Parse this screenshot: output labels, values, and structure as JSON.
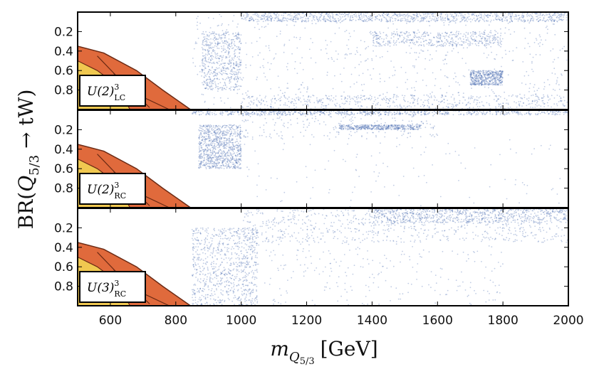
{
  "chart_data": {
    "type": "scatter",
    "xlabel": "m_{Q_{5/3}} [GeV]",
    "xlabel_main": "m",
    "xlabel_sub": "Q",
    "xlabel_subsub": "5/3",
    "xlabel_unit": "[GeV]",
    "ylabel": "BR(Q_{5/3} → tW)",
    "ylabel_pre": "BR(",
    "ylabel_q": "Q",
    "ylabel_sub": "5/3",
    "ylabel_post": " → tW)",
    "xlim": [
      500,
      2000
    ],
    "ylim": [
      0,
      1
    ],
    "y_inverted": true,
    "x_ticks": [
      600,
      800,
      1000,
      1200,
      1400,
      1600,
      1800,
      2000
    ],
    "x_tick_labels": [
      "600",
      "800",
      "1000",
      "1200",
      "1400",
      "1600",
      "1800",
      "2000"
    ],
    "y_ticks": [
      0.2,
      0.4,
      0.6,
      0.8
    ],
    "y_tick_labels": [
      "0.2",
      "0.4",
      "0.6",
      "0.8"
    ],
    "point_color": "#4a6cb3",
    "exclusion_colors": [
      "#f0c850",
      "#e06a3c"
    ],
    "exclusion_edge_color": "#6b2a14",
    "panels": [
      {
        "label": "U(2)",
        "sup": "3",
        "sub": "LC",
        "exclusion_inner": [
          [
            500,
            0.5
          ],
          [
            560,
            0.6
          ],
          [
            620,
            0.75
          ],
          [
            660,
            1.0
          ]
        ],
        "exclusion_outer": [
          [
            500,
            0.35
          ],
          [
            580,
            0.42
          ],
          [
            680,
            0.6
          ],
          [
            760,
            0.8
          ],
          [
            845,
            1.0
          ]
        ],
        "density": [
          {
            "x": [
              850,
              2000
            ],
            "y": [
              0.0,
              1.0
            ],
            "w": 1.0
          },
          {
            "x": [
              1000,
              2000
            ],
            "y": [
              0.0,
              0.1
            ],
            "w": 1.4
          },
          {
            "x": [
              880,
              1000
            ],
            "y": [
              0.2,
              0.8
            ],
            "w": 0.8
          },
          {
            "x": [
              1400,
              1800
            ],
            "y": [
              0.2,
              0.35
            ],
            "w": 0.6
          },
          {
            "x": [
              1700,
              1800
            ],
            "y": [
              0.6,
              0.75
            ],
            "w": 0.7
          },
          {
            "x": [
              1000,
              2000
            ],
            "y": [
              0.85,
              1.0
            ],
            "w": 0.7
          }
        ]
      },
      {
        "label": "U(2)",
        "sup": "3",
        "sub": "RC",
        "exclusion_inner": [
          [
            500,
            0.5
          ],
          [
            560,
            0.6
          ],
          [
            620,
            0.75
          ],
          [
            660,
            1.0
          ]
        ],
        "exclusion_outer": [
          [
            500,
            0.35
          ],
          [
            580,
            0.42
          ],
          [
            680,
            0.6
          ],
          [
            760,
            0.8
          ],
          [
            845,
            1.0
          ]
        ],
        "density": [
          {
            "x": [
              870,
              1000
            ],
            "y": [
              0.15,
              0.6
            ],
            "w": 1.3
          },
          {
            "x": [
              1000,
              1600
            ],
            "y": [
              0.0,
              0.3
            ],
            "w": 0.35
          },
          {
            "x": [
              850,
              2000
            ],
            "y": [
              0.0,
              0.05
            ],
            "w": 1.0
          },
          {
            "x": [
              1000,
              2000
            ],
            "y": [
              0.3,
              1.0
            ],
            "w": 0.15
          },
          {
            "x": [
              1300,
              1550
            ],
            "y": [
              0.15,
              0.2
            ],
            "w": 0.6
          }
        ]
      },
      {
        "label": "U(3)",
        "sup": "3",
        "sub": "RC",
        "exclusion_inner": [
          [
            500,
            0.5
          ],
          [
            560,
            0.6
          ],
          [
            620,
            0.75
          ],
          [
            660,
            1.0
          ]
        ],
        "exclusion_outer": [
          [
            500,
            0.35
          ],
          [
            580,
            0.42
          ],
          [
            680,
            0.6
          ],
          [
            760,
            0.8
          ],
          [
            845,
            1.0
          ]
        ],
        "density": [
          {
            "x": [
              850,
              1050
            ],
            "y": [
              0.2,
              1.0
            ],
            "w": 1.2
          },
          {
            "x": [
              1000,
              2000
            ],
            "y": [
              0.0,
              0.35
            ],
            "w": 1.1
          },
          {
            "x": [
              1000,
              1800
            ],
            "y": [
              0.35,
              1.0
            ],
            "w": 0.35
          },
          {
            "x": [
              1400,
              2000
            ],
            "y": [
              0.0,
              0.15
            ],
            "w": 1.0
          }
        ]
      }
    ]
  }
}
